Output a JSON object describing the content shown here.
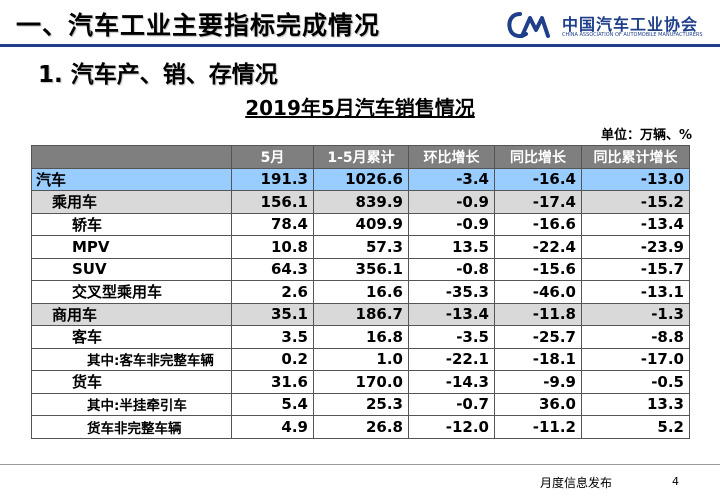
{
  "header": {
    "title": "一、汽车工业主要指标完成情况",
    "logo_text": "中国汽车工业协会",
    "logo_subtext": "CHINA ASSOCIATION OF AUTOMOBILE MANUFACTURERS",
    "logo_color": "#1f3f8a"
  },
  "section_title": "1. 汽车产、销、存情况",
  "table_title": "2019年5月汽车销售情况",
  "unit_note": "单位：万辆、%",
  "table": {
    "headers": [
      "",
      "5月",
      "1-5月累计",
      "环比增长",
      "同比增长",
      "同比累计增长"
    ],
    "rows": [
      {
        "label": "汽车",
        "level": 0,
        "values": [
          "191.3",
          "1026.6",
          "-3.4",
          "-16.4",
          "-13.0"
        ]
      },
      {
        "label": "乘用车",
        "level": 1,
        "values": [
          "156.1",
          "839.9",
          "-0.9",
          "-17.4",
          "-15.2"
        ]
      },
      {
        "label": "轿车",
        "level": 2,
        "values": [
          "78.4",
          "409.9",
          "-0.9",
          "-16.6",
          "-13.4"
        ]
      },
      {
        "label": "MPV",
        "level": 2,
        "values": [
          "10.8",
          "57.3",
          "13.5",
          "-22.4",
          "-23.9"
        ]
      },
      {
        "label": "SUV",
        "level": 2,
        "values": [
          "64.3",
          "356.1",
          "-0.8",
          "-15.6",
          "-15.7"
        ]
      },
      {
        "label": "交叉型乘用车",
        "level": 2,
        "values": [
          "2.6",
          "16.6",
          "-35.3",
          "-46.0",
          "-13.1"
        ]
      },
      {
        "label": "商用车",
        "level": 1,
        "values": [
          "35.1",
          "186.7",
          "-13.4",
          "-11.8",
          "-1.3"
        ]
      },
      {
        "label": "客车",
        "level": 2,
        "values": [
          "3.5",
          "16.8",
          "-3.5",
          "-25.7",
          "-8.8"
        ]
      },
      {
        "label": "其中:客车非完整车辆",
        "level": 3,
        "values": [
          "0.2",
          "1.0",
          "-22.1",
          "-18.1",
          "-17.0"
        ]
      },
      {
        "label": "货车",
        "level": 2,
        "values": [
          "31.6",
          "170.0",
          "-14.3",
          "-9.9",
          "-0.5"
        ]
      },
      {
        "label": "其中:半挂牵引车",
        "level": 3,
        "values": [
          "5.4",
          "25.3",
          "-0.7",
          "36.0",
          "13.3"
        ]
      },
      {
        "label": "货车非完整车辆",
        "level": 3,
        "values": [
          "4.9",
          "26.8",
          "-12.0",
          "-11.2",
          "5.2"
        ]
      }
    ]
  },
  "footer": {
    "text": "月度信息发布",
    "page_number": "4"
  }
}
